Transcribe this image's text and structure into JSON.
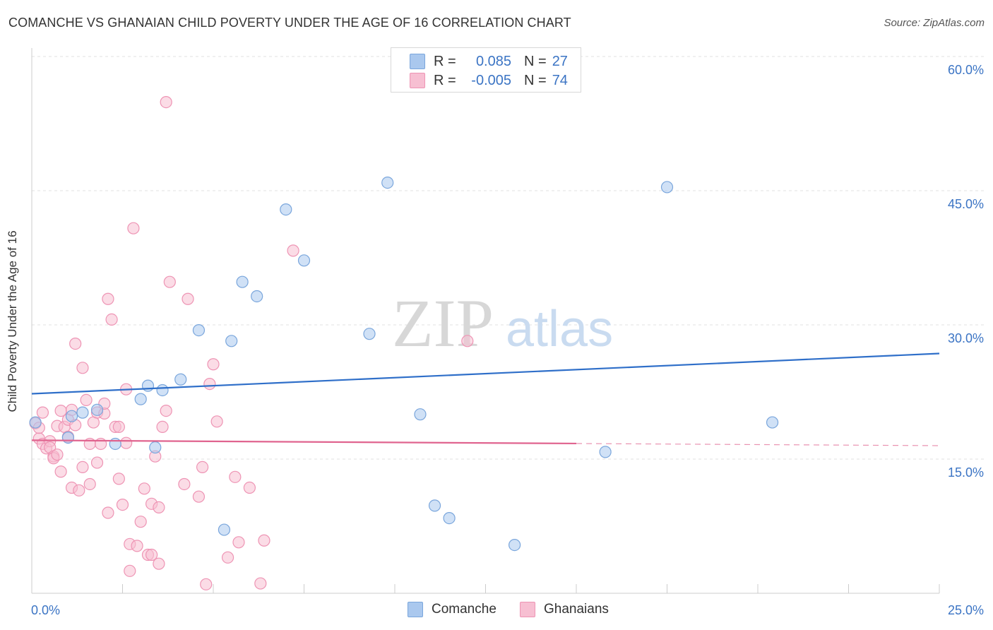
{
  "chart_data": {
    "type": "scatter",
    "title": "COMANCHE VS GHANAIAN CHILD POVERTY UNDER THE AGE OF 16 CORRELATION CHART",
    "source": "Source: ZipAtlas.com",
    "xlabel": "",
    "ylabel": "Child Poverty Under the Age of 16",
    "xlim": [
      0,
      25
    ],
    "ylim": [
      0,
      60
    ],
    "x_tick_labels": [
      "0.0%",
      "25.0%"
    ],
    "y_ticks": [
      15,
      30,
      45,
      60
    ],
    "y_tick_labels": [
      "15.0%",
      "30.0%",
      "45.0%",
      "60.0%"
    ],
    "watermark": "ZIPatlas",
    "legend": {
      "rows": [
        {
          "r_label": "R =",
          "r_value": "0.085",
          "n_label": "N =",
          "n_value": "27"
        },
        {
          "r_label": "R =",
          "r_value": "-0.005",
          "n_label": "N =",
          "n_value": "74"
        }
      ]
    },
    "series": [
      {
        "name": "Comanche",
        "color": "#aac8ee",
        "stroke": "#7aa6dc",
        "line_color": "#2f6fc9",
        "trend": {
          "x": [
            0,
            25
          ],
          "y": [
            22.3,
            26.8
          ],
          "dashed_from": null
        },
        "points": [
          [
            0.1,
            19.1
          ],
          [
            1.1,
            19.8
          ],
          [
            1.0,
            17.4
          ],
          [
            1.4,
            20.2
          ],
          [
            1.8,
            20.5
          ],
          [
            2.3,
            16.7
          ],
          [
            3.0,
            21.7
          ],
          [
            3.2,
            23.2
          ],
          [
            3.4,
            16.3
          ],
          [
            3.6,
            22.7
          ],
          [
            4.1,
            23.9
          ],
          [
            4.6,
            29.4
          ],
          [
            5.5,
            28.2
          ],
          [
            5.8,
            34.8
          ],
          [
            6.2,
            33.2
          ],
          [
            7.0,
            42.9
          ],
          [
            7.5,
            37.2
          ],
          [
            9.3,
            29.0
          ],
          [
            9.8,
            45.9
          ],
          [
            10.7,
            20.0
          ],
          [
            11.1,
            9.8
          ],
          [
            11.5,
            8.4
          ],
          [
            13.3,
            5.4
          ],
          [
            15.8,
            15.8
          ],
          [
            17.5,
            45.4
          ],
          [
            20.4,
            19.1
          ],
          [
            5.3,
            7.1
          ]
        ]
      },
      {
        "name": "Ghanaians",
        "color": "#f7bfd2",
        "stroke": "#ee94b4",
        "line_color": "#e0648f",
        "trend": {
          "x": [
            0,
            25
          ],
          "y": [
            17.1,
            16.5
          ],
          "dashed_from": 15
        },
        "points": [
          [
            0.1,
            19.0
          ],
          [
            0.2,
            17.3
          ],
          [
            0.3,
            16.7
          ],
          [
            0.3,
            20.2
          ],
          [
            0.4,
            16.2
          ],
          [
            0.5,
            17.0
          ],
          [
            0.5,
            16.3
          ],
          [
            0.6,
            15.3
          ],
          [
            0.6,
            15.1
          ],
          [
            0.7,
            18.7
          ],
          [
            0.7,
            15.5
          ],
          [
            0.8,
            20.4
          ],
          [
            0.8,
            13.6
          ],
          [
            0.9,
            18.6
          ],
          [
            1.0,
            17.5
          ],
          [
            1.0,
            19.4
          ],
          [
            1.1,
            20.5
          ],
          [
            1.1,
            11.8
          ],
          [
            1.2,
            18.8
          ],
          [
            1.2,
            27.9
          ],
          [
            1.3,
            11.5
          ],
          [
            1.4,
            14.1
          ],
          [
            1.4,
            25.2
          ],
          [
            1.5,
            21.6
          ],
          [
            1.6,
            16.7
          ],
          [
            1.6,
            12.2
          ],
          [
            1.7,
            19.1
          ],
          [
            1.8,
            20.2
          ],
          [
            1.8,
            14.6
          ],
          [
            1.9,
            16.7
          ],
          [
            2.0,
            20.1
          ],
          [
            2.0,
            21.2
          ],
          [
            2.1,
            32.9
          ],
          [
            2.1,
            9.0
          ],
          [
            2.2,
            30.6
          ],
          [
            2.3,
            18.6
          ],
          [
            2.4,
            18.6
          ],
          [
            2.4,
            12.8
          ],
          [
            2.5,
            9.9
          ],
          [
            2.6,
            16.8
          ],
          [
            2.6,
            22.8
          ],
          [
            2.7,
            5.5
          ],
          [
            2.7,
            2.5
          ],
          [
            2.8,
            40.8
          ],
          [
            2.9,
            5.3
          ],
          [
            3.0,
            8.0
          ],
          [
            3.1,
            11.7
          ],
          [
            3.2,
            4.3
          ],
          [
            3.3,
            4.3
          ],
          [
            3.3,
            10.0
          ],
          [
            3.4,
            15.3
          ],
          [
            3.5,
            3.3
          ],
          [
            3.5,
            9.6
          ],
          [
            3.6,
            18.6
          ],
          [
            3.7,
            20.4
          ],
          [
            3.8,
            34.8
          ],
          [
            4.2,
            12.2
          ],
          [
            4.3,
            32.9
          ],
          [
            4.6,
            10.8
          ],
          [
            4.7,
            14.1
          ],
          [
            4.8,
            1.0
          ],
          [
            4.9,
            23.4
          ],
          [
            5.0,
            25.6
          ],
          [
            5.1,
            19.2
          ],
          [
            5.4,
            4.0
          ],
          [
            5.6,
            13.0
          ],
          [
            5.7,
            5.7
          ],
          [
            6.0,
            11.8
          ],
          [
            6.3,
            1.1
          ],
          [
            6.4,
            5.9
          ],
          [
            7.2,
            38.3
          ],
          [
            3.7,
            54.9
          ],
          [
            12.0,
            28.2
          ],
          [
            0.2,
            18.5
          ]
        ]
      }
    ]
  }
}
